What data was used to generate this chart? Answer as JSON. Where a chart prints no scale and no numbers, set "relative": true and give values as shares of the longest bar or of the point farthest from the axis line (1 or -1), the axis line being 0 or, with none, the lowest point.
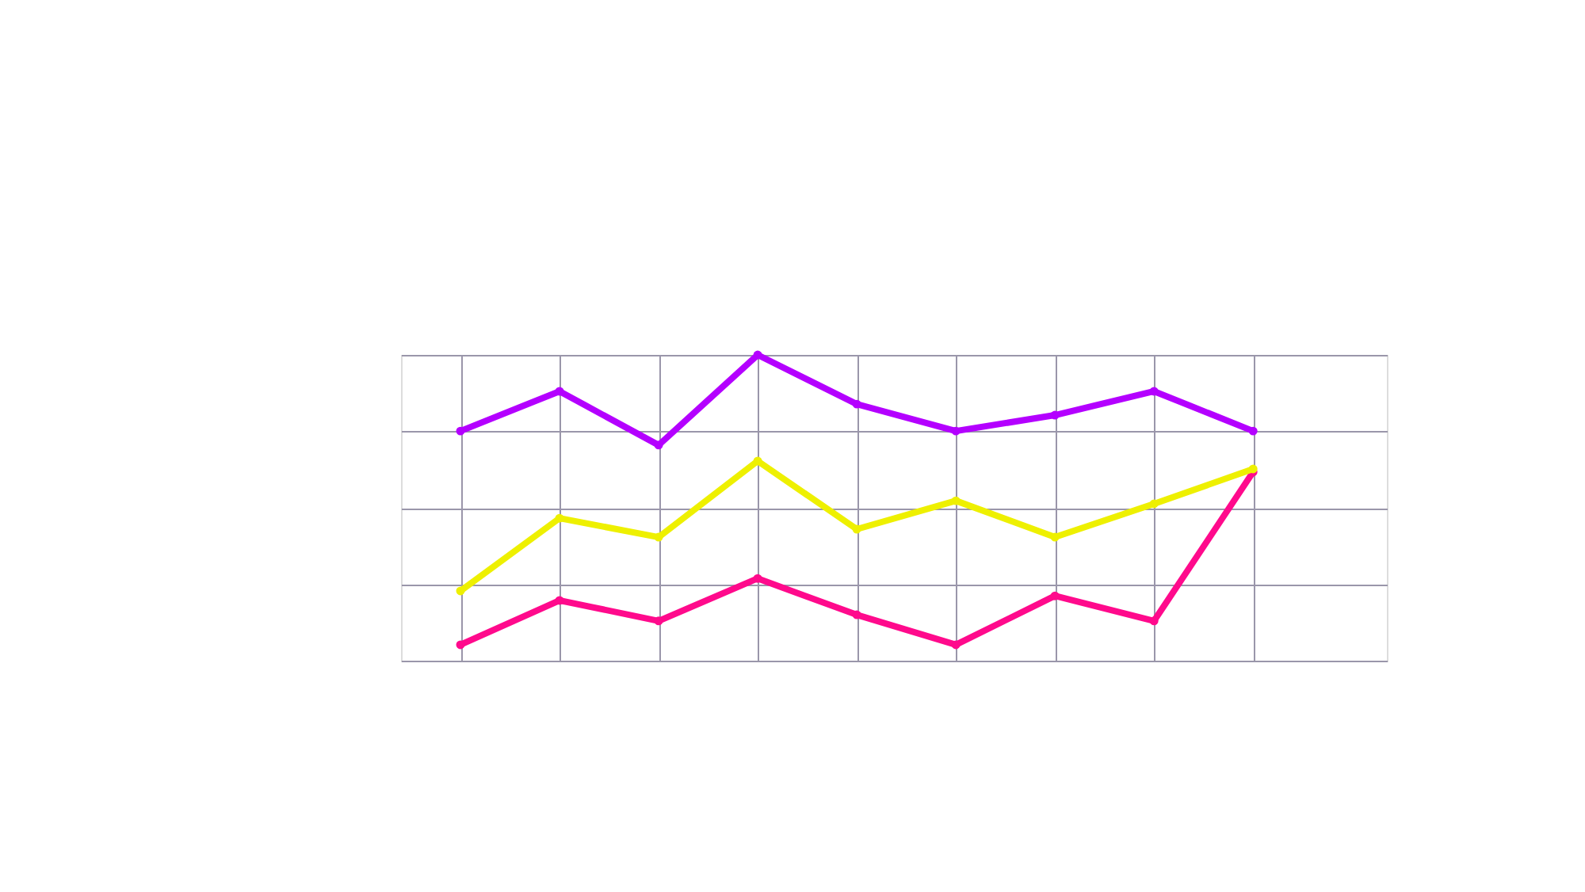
{
  "chart_data": {
    "type": "line",
    "relative": true,
    "categories": [
      null,
      null,
      null,
      null,
      null,
      null,
      null,
      null,
      null
    ],
    "series": [
      {
        "color": "#b400ff",
        "values": [
          0.751,
          0.881,
          0.705,
          1.0,
          0.839,
          0.751,
          0.803,
          0.881,
          0.751
        ]
      },
      {
        "color": "#eef000",
        "values": [
          0.228,
          0.466,
          0.404,
          0.653,
          0.43,
          0.523,
          0.404,
          0.513,
          0.627
        ]
      },
      {
        "color": "#ff0a8c",
        "values": [
          0.052,
          0.197,
          0.13,
          0.269,
          0.15,
          0.052,
          0.212,
          0.13,
          0.617
        ]
      }
    ],
    "grid": true,
    "legend": false,
    "marker": "circle",
    "line_style": "solid"
  }
}
